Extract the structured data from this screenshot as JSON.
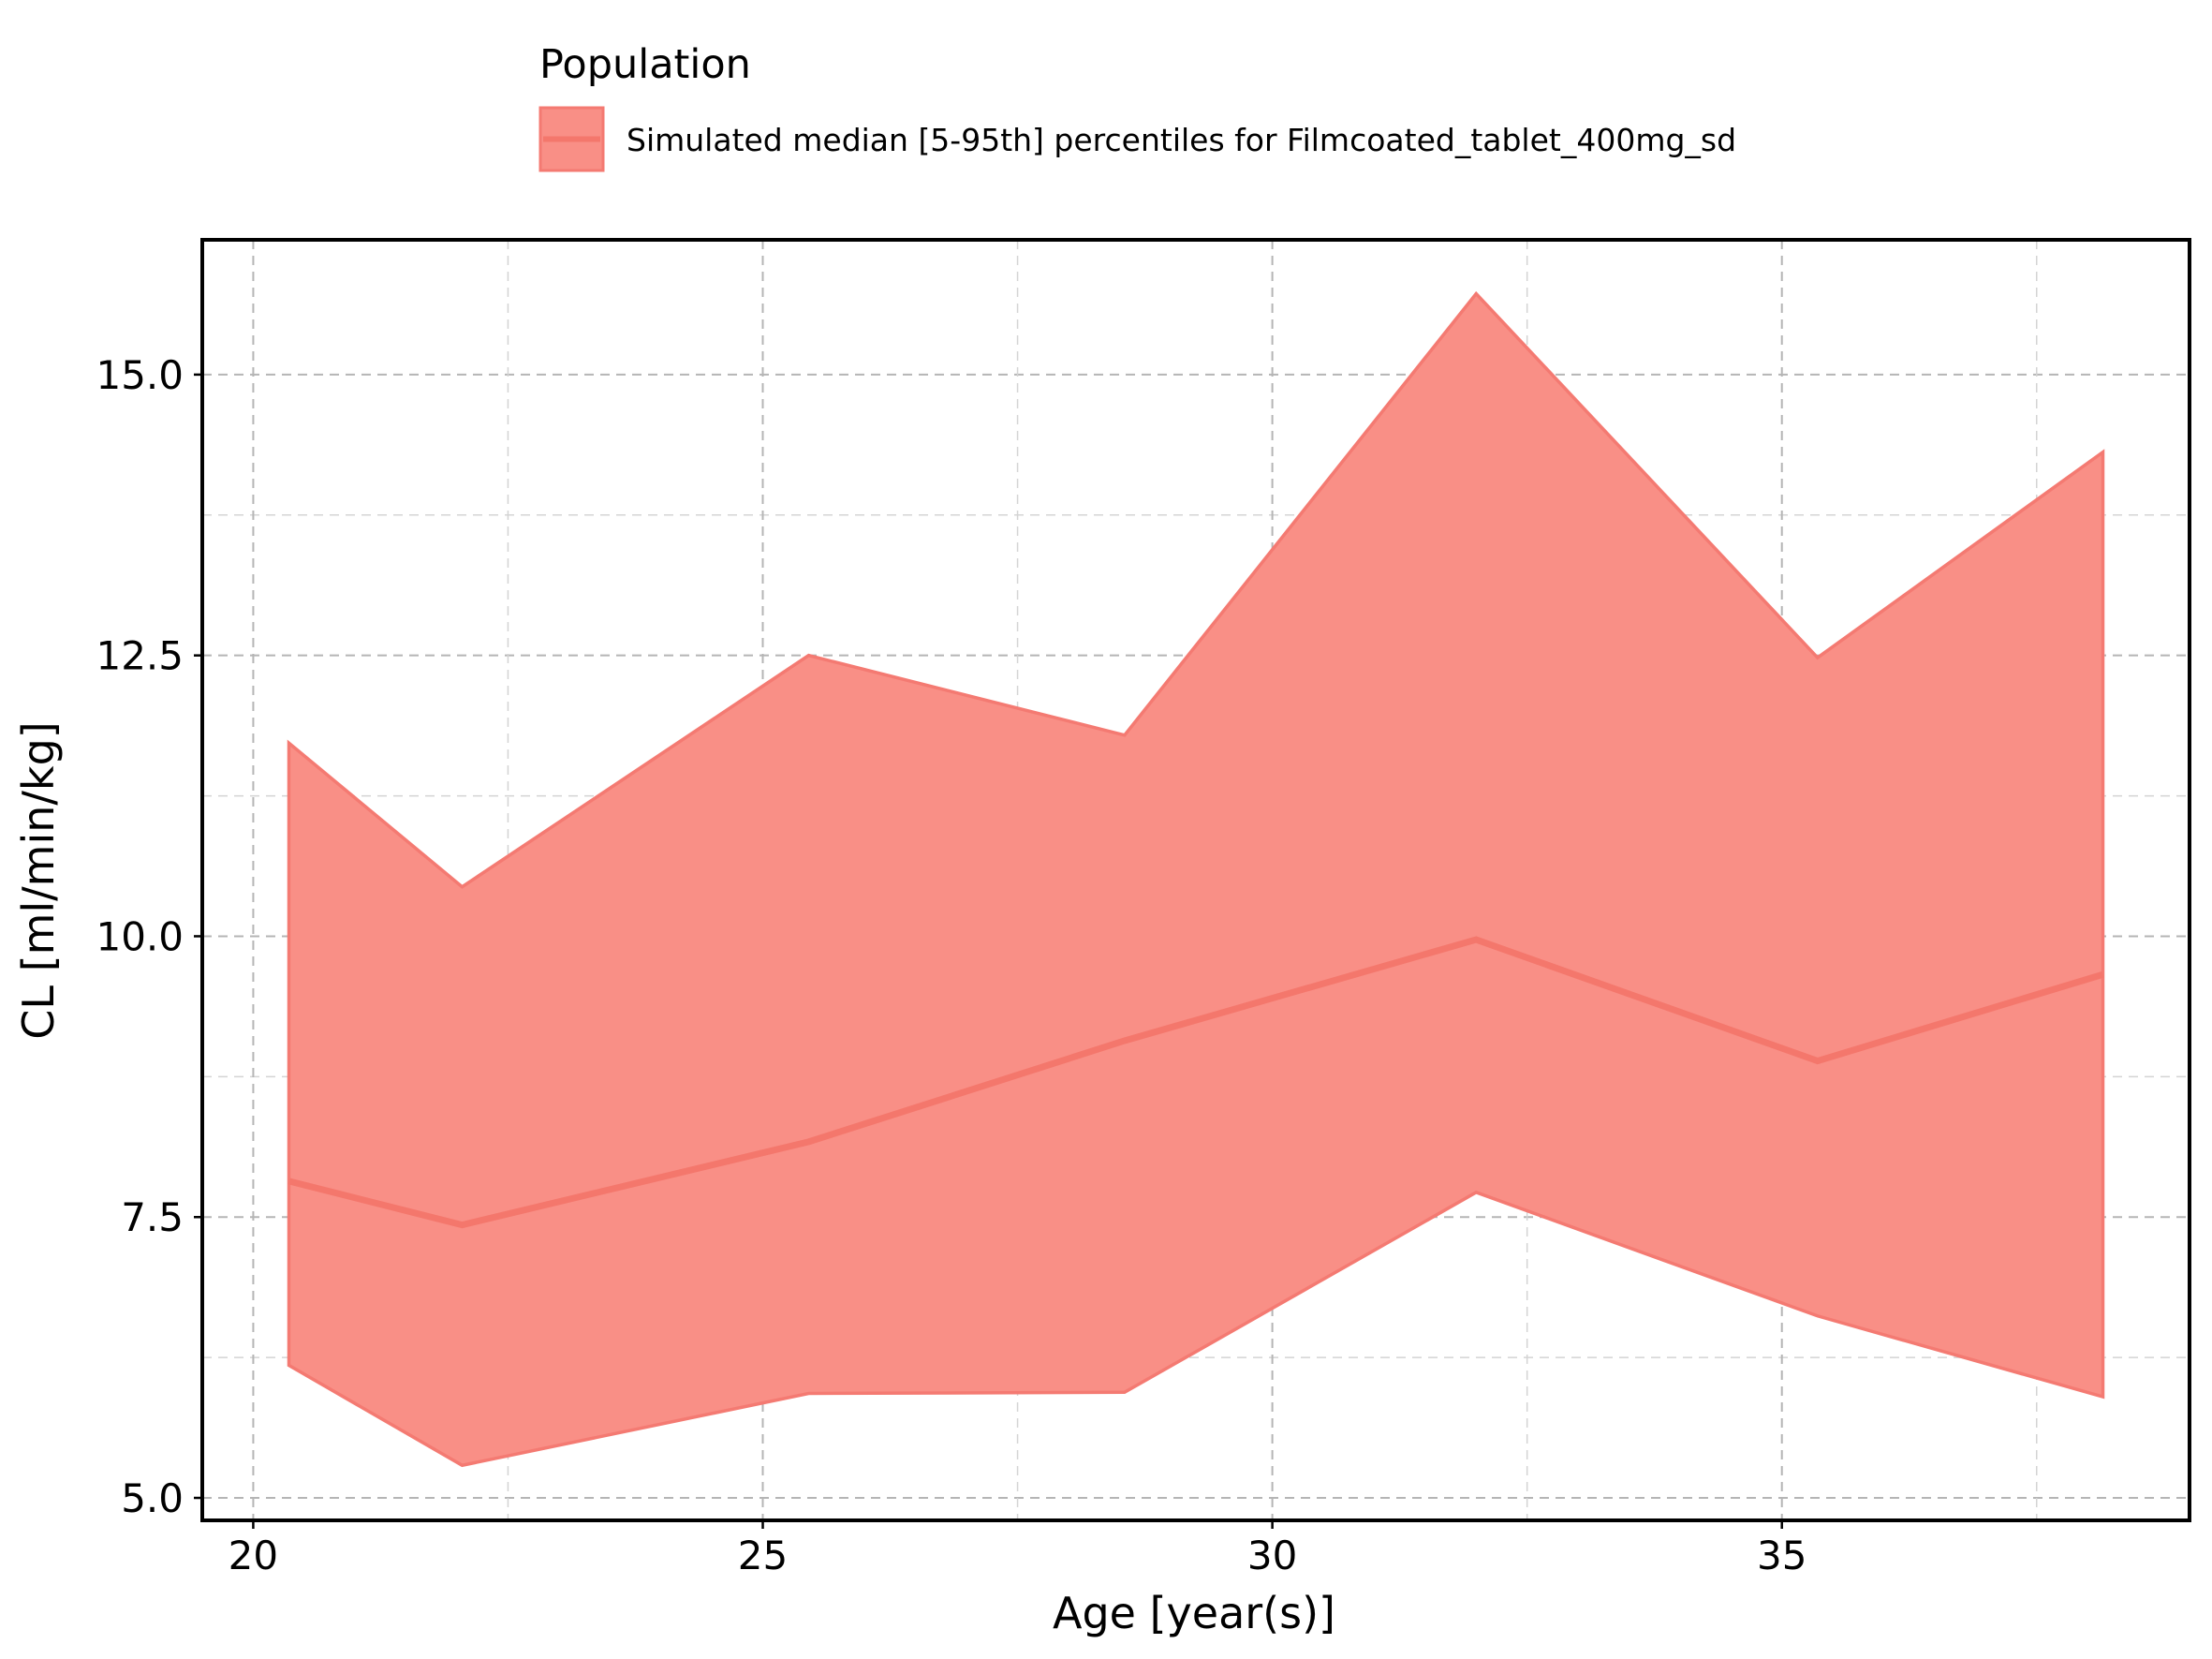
{
  "legend": {
    "title": "Population",
    "label": "Simulated median [5-95th] percentiles for Filmcoated_tablet_400mg_sd"
  },
  "colors": {
    "band_fill": "#F98F86",
    "band_edge": "#F47A72",
    "median_line": "#F4776C"
  },
  "chart_data": {
    "type": "area",
    "xlabel": "Age [year(s)]",
    "ylabel": "CL [ml/min/kg]",
    "xlim": [
      19.5,
      39
    ],
    "ylim": [
      4.8,
      16.2
    ],
    "xticks": [
      20,
      25,
      30,
      35
    ],
    "xtick_labels": [
      "20",
      "25",
      "30",
      "35"
    ],
    "yticks": [
      5.0,
      7.5,
      10.0,
      12.5,
      15.0
    ],
    "ytick_labels": [
      "5.0",
      "7.5",
      "10.0",
      "12.5",
      "15.0"
    ],
    "grid": true,
    "legend_position": "top",
    "series": [
      {
        "name": "Simulated median [5-95th] percentiles for Filmcoated_tablet_400mg_sd",
        "x": [
          20.35,
          22.05,
          25.45,
          28.55,
          32.0,
          35.35,
          38.15
        ],
        "median": [
          7.82,
          7.43,
          8.17,
          9.07,
          9.97,
          8.89,
          9.66
        ],
        "p95": [
          11.72,
          10.44,
          12.5,
          11.79,
          15.72,
          12.48,
          14.31
        ],
        "p5": [
          6.18,
          5.29,
          5.93,
          5.94,
          7.72,
          6.62,
          5.9
        ]
      }
    ]
  }
}
